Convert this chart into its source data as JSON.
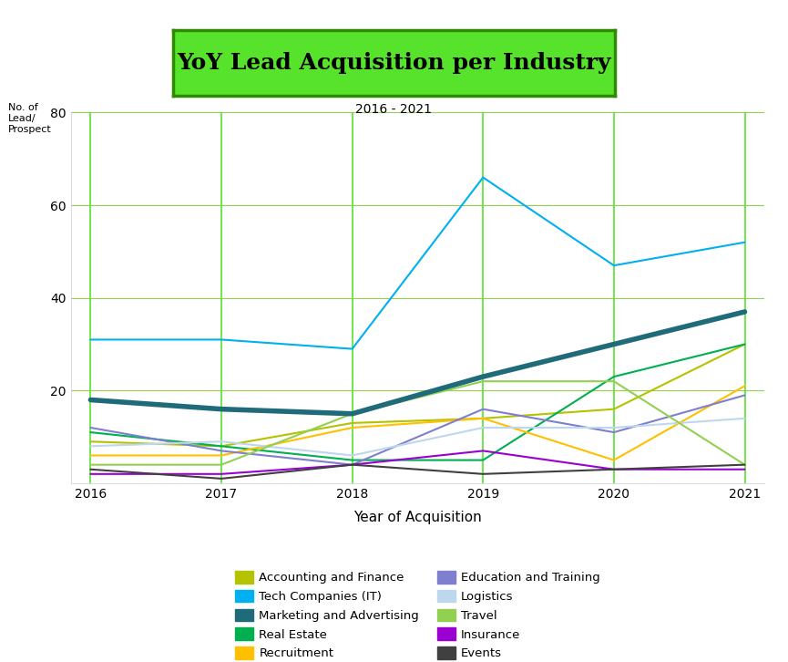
{
  "title": "YoY Lead Acquisition per Industry",
  "subtitle": "2016 - 2021",
  "ylabel": "No. of\nLead/\nProspect",
  "xlabel": "Year of Acquisition",
  "years": [
    2016,
    2017,
    2018,
    2019,
    2020,
    2021
  ],
  "ylim": [
    0,
    80
  ],
  "yticks": [
    20,
    40,
    60,
    80
  ],
  "series": {
    "Accounting and Finance": {
      "values": [
        9,
        8,
        13,
        14,
        16,
        30
      ],
      "color": "#b5c200",
      "linewidth": 1.5,
      "zorder": 3
    },
    "Tech Companies (IT)": {
      "values": [
        31,
        31,
        29,
        66,
        47,
        52
      ],
      "color": "#00b0f0",
      "linewidth": 1.5,
      "zorder": 3
    },
    "Marketing and Advertising": {
      "values": [
        18,
        16,
        15,
        23,
        30,
        37
      ],
      "color": "#1f6b7a",
      "linewidth": 4.0,
      "zorder": 4
    },
    "Real Estate": {
      "values": [
        11,
        8,
        5,
        5,
        23,
        30
      ],
      "color": "#00b050",
      "linewidth": 1.5,
      "zorder": 3
    },
    "Recruitment": {
      "values": [
        6,
        6,
        12,
        14,
        5,
        21
      ],
      "color": "#ffc000",
      "linewidth": 1.5,
      "zorder": 3
    },
    "Education and Training": {
      "values": [
        12,
        7,
        4,
        16,
        11,
        19
      ],
      "color": "#7f7fcf",
      "linewidth": 1.5,
      "zorder": 3
    },
    "Logistics": {
      "values": [
        8,
        9,
        6,
        12,
        12,
        14
      ],
      "color": "#bdd7ee",
      "linewidth": 1.5,
      "zorder": 3
    },
    "Travel": {
      "values": [
        4,
        4,
        15,
        22,
        22,
        4
      ],
      "color": "#92d050",
      "linewidth": 1.5,
      "zorder": 3
    },
    "Insurance": {
      "values": [
        2,
        2,
        4,
        7,
        3,
        3
      ],
      "color": "#9b00d3",
      "linewidth": 1.5,
      "zorder": 3
    },
    "Events": {
      "values": [
        3,
        1,
        4,
        2,
        3,
        4
      ],
      "color": "#404040",
      "linewidth": 1.5,
      "zorder": 3
    }
  },
  "title_bg_color": "#57e32c",
  "title_border_color": "#2e8b00",
  "grid_color": "#92d050",
  "vline_color": "#57e32c",
  "bg_color": "#ffffff"
}
